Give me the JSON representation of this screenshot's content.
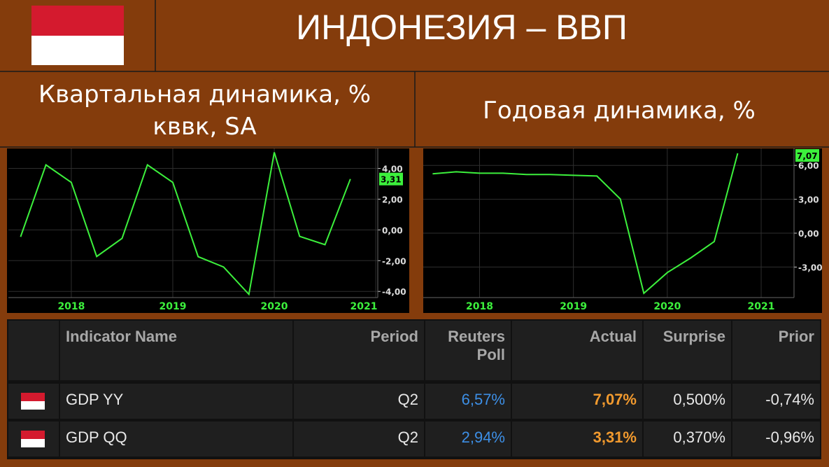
{
  "header": {
    "title": "ИНДОНЕЗИЯ – ВВП"
  },
  "chart_data": [
    {
      "type": "line",
      "title": "Квартальная динамика, % кввк, SA",
      "x": [
        2017.5,
        2017.75,
        2018,
        2018.25,
        2018.5,
        2018.75,
        2019,
        2019.25,
        2019.5,
        2019.75,
        2020,
        2020.25,
        2020.5,
        2020.75
      ],
      "series": [
        {
          "color": "#3cf03c",
          "values": [
            -0.45,
            4.23,
            3.09,
            -1.73,
            -0.55,
            4.23,
            3.09,
            -1.74,
            -2.41,
            -4.19,
            5.05,
            -0.42,
            -0.96,
            3.31
          ],
          "value_labels": [
            null,
            null,
            null,
            null,
            null,
            null,
            null,
            null,
            null,
            null,
            null,
            null,
            null,
            "3,31"
          ]
        }
      ],
      "xlim": [
        2017.38,
        2021.02
      ],
      "xticks": [
        2018,
        2019,
        2020,
        2021
      ],
      "ylim": [
        -4.4,
        5.3
      ],
      "yticks": [
        {
          "value": -4,
          "label": "-4,00"
        },
        {
          "value": -2,
          "label": "-2,00"
        },
        {
          "value": 0,
          "label": "0,00"
        },
        {
          "value": 2,
          "label": "2,00"
        },
        {
          "value": 4,
          "label": "4,00"
        }
      ],
      "grid": true
    },
    {
      "type": "line",
      "title": "Годовая динамика, %",
      "x": [
        2017.5,
        2017.75,
        2018,
        2018.25,
        2018.5,
        2018.75,
        2019,
        2019.25,
        2019.5,
        2019.75,
        2020,
        2020.25,
        2020.5,
        2020.75
      ],
      "series": [
        {
          "color": "#3cf03c",
          "values": [
            5.25,
            5.43,
            5.31,
            5.31,
            5.19,
            5.19,
            5.12,
            5.06,
            3.02,
            -5.32,
            -3.49,
            -2.19,
            -0.74,
            7.07
          ],
          "value_labels": [
            null,
            null,
            null,
            null,
            null,
            null,
            null,
            null,
            null,
            null,
            null,
            null,
            null,
            "7,07"
          ]
        }
      ],
      "xlim": [
        2017.4,
        2021.35
      ],
      "xticks": [
        2018,
        2019,
        2020,
        2021
      ],
      "ylim": [
        -5.7,
        7.5
      ],
      "yticks": [
        {
          "value": -3,
          "label": "-3,00"
        },
        {
          "value": 0,
          "label": "0,00"
        },
        {
          "value": 3,
          "label": "3,00"
        },
        {
          "value": 6,
          "label": "6,00"
        }
      ],
      "grid": true
    }
  ],
  "table": {
    "header": [
      "Indicator Name",
      "Period",
      "Reuters Poll",
      "Actual",
      "Surprise",
      "Prior"
    ],
    "rows": [
      [
        "GDP YY",
        "Q2",
        "6,57%",
        "7,07%",
        "0,500%",
        "-0,74%"
      ],
      [
        "GDP QQ",
        "Q2",
        "2,94%",
        "3,31%",
        "0,370%",
        "-0,96%"
      ]
    ]
  }
}
